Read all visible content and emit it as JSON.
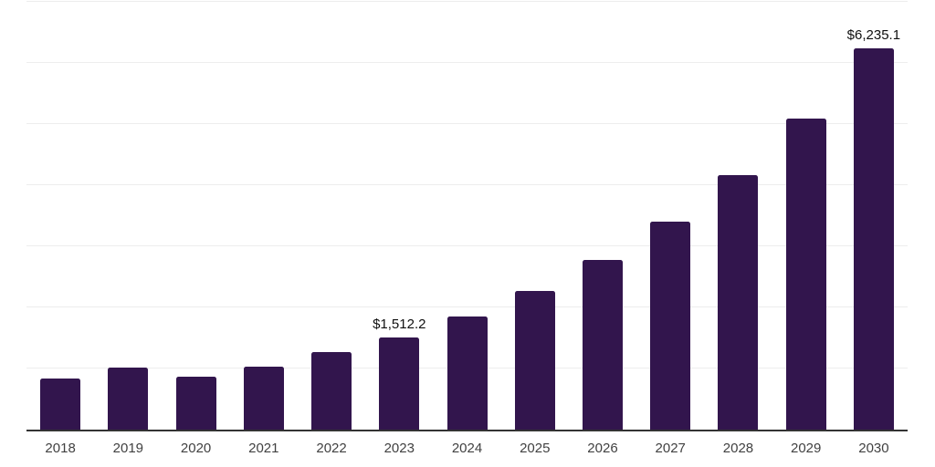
{
  "chart_data": {
    "type": "bar",
    "title": "",
    "xlabel": "",
    "ylabel": "",
    "categories": [
      "2018",
      "2019",
      "2020",
      "2021",
      "2022",
      "2023",
      "2024",
      "2025",
      "2026",
      "2027",
      "2028",
      "2029",
      "2030"
    ],
    "values": [
      840,
      1010,
      870,
      1030,
      1270,
      1512.2,
      1851.4,
      2266.7,
      2775.2,
      3397.7,
      4159.9,
      5093.0,
      6235.1
    ],
    "value_labels": [
      {
        "category": "2023",
        "text": "$1,512.2"
      },
      {
        "category": "2030",
        "text": "$6,235.1"
      }
    ],
    "ylim": [
      0,
      7000
    ],
    "gridline_step": 1000,
    "grid": "horizontal",
    "legend": "none",
    "colors": {
      "bar": "#32154d",
      "gridline": "#ededed",
      "axis": "#333333",
      "tick_label": "#414141",
      "value_label": "#0f0f0f"
    }
  }
}
